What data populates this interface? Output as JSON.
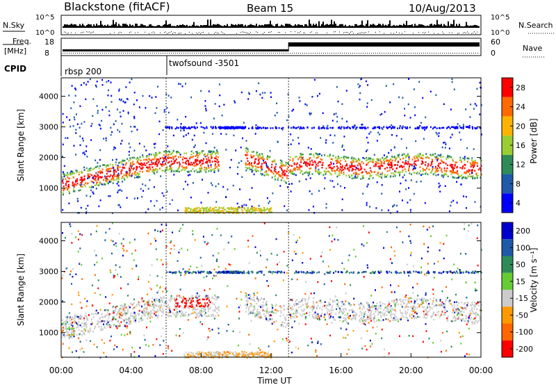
{
  "header": {
    "title": "Blackstone (fitACF)",
    "beam": "Beam 15",
    "date": "10/Aug/2013"
  },
  "status": {
    "nsky_label": "N.Sky",
    "nsearch_label": "N.Search",
    "freq_label_line1": "Freq.",
    "freq_label_line2": "[MHz]",
    "nave_label": "Nave",
    "cpid_label": "CPID",
    "noise_ticks": [
      "10^5",
      "10^0"
    ],
    "freq_ticks": [
      "18",
      "8"
    ],
    "nave_ticks": [
      "60",
      "0"
    ],
    "cpid_segments": [
      {
        "label": "rbsp 200",
        "start_hour": 0
      },
      {
        "label": "twofsound -3501",
        "start_hour": 6
      }
    ]
  },
  "chart_data": [
    {
      "type": "heatmap",
      "panel": "power",
      "xlabel": "",
      "ylabel": "Slant Range [km]",
      "colorbar_label": "Power [dB]",
      "xlim_hours": [
        0,
        24
      ],
      "ylim_km": [
        200,
        4600
      ],
      "yticks": [
        1000,
        2000,
        3000,
        4000
      ],
      "colorbar_ticks": [
        "28",
        "24",
        "20",
        "16",
        "12",
        "8",
        "4"
      ],
      "colorbar_colors": [
        "#ff0000",
        "#ff6a00",
        "#ffb300",
        "#9acd32",
        "#2e8b57",
        "#1e5aa8",
        "#0000ff"
      ],
      "features": [
        {
          "hours": [
            0,
            6
          ],
          "range_km": [
            1100,
            2000
          ],
          "level": "high"
        },
        {
          "hours": [
            6,
            9
          ],
          "range_km": [
            1700,
            2100
          ],
          "level": "medium"
        },
        {
          "hours": [
            10.5,
            13
          ],
          "range_km": [
            1200,
            2000
          ],
          "level": "medium"
        },
        {
          "hours": [
            13,
            24
          ],
          "range_km": [
            1500,
            2200
          ],
          "level": "medium"
        },
        {
          "hours": [
            6,
            24
          ],
          "range_km": [
            3000,
            3050
          ],
          "level": "low"
        }
      ]
    },
    {
      "type": "heatmap",
      "panel": "velocity",
      "xlabel": "Time UT",
      "ylabel": "Slant Range [km]",
      "colorbar_label": "Velocity [m s⁻¹]",
      "xlim_hours": [
        0,
        24
      ],
      "ylim_km": [
        200,
        4600
      ],
      "yticks": [
        1000,
        2000,
        3000,
        4000
      ],
      "xticks": [
        "00:00",
        "04:00",
        "08:00",
        "12:00",
        "16:00",
        "20:00",
        "00:00"
      ],
      "colorbar_ticks": [
        "200",
        "100",
        "50",
        "15",
        "-15",
        "-50",
        "-100",
        "-200"
      ],
      "colorbar_colors": [
        "#0000cc",
        "#1e5aa8",
        "#2e8b57",
        "#66cc33",
        "#cccccc",
        "#ff9900",
        "#ff6600",
        "#ff0000"
      ]
    }
  ]
}
